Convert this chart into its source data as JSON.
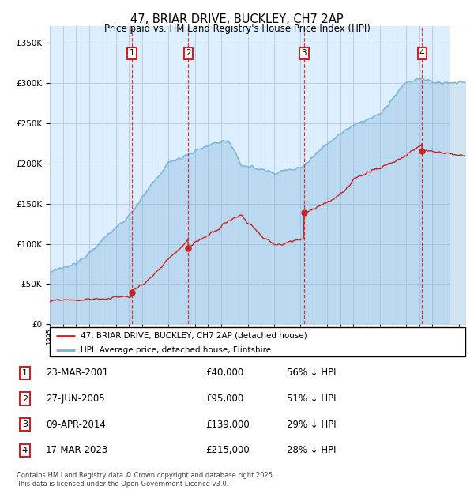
{
  "title": "47, BRIAR DRIVE, BUCKLEY, CH7 2AP",
  "subtitle": "Price paid vs. HM Land Registry's House Price Index (HPI)",
  "legend_property": "47, BRIAR DRIVE, BUCKLEY, CH7 2AP (detached house)",
  "legend_hpi": "HPI: Average price, detached house, Flintshire",
  "footer": "Contains HM Land Registry data © Crown copyright and database right 2025.\nThis data is licensed under the Open Government Licence v3.0.",
  "transactions": [
    {
      "num": 1,
      "date": "23-MAR-2001",
      "price": 40000,
      "pct": "56% ↓ HPI",
      "year": 2001.22
    },
    {
      "num": 2,
      "date": "27-JUN-2005",
      "price": 95000,
      "pct": "51% ↓ HPI",
      "year": 2005.49
    },
    {
      "num": 3,
      "date": "09-APR-2014",
      "price": 139000,
      "pct": "29% ↓ HPI",
      "year": 2014.27
    },
    {
      "num": 4,
      "date": "17-MAR-2023",
      "price": 215000,
      "pct": "28% ↓ HPI",
      "year": 2023.21
    }
  ],
  "xlim": [
    1995,
    2026.5
  ],
  "ylim": [
    0,
    370000
  ],
  "yticks": [
    0,
    50000,
    100000,
    150000,
    200000,
    250000,
    300000,
    350000
  ],
  "ytick_labels": [
    "£0",
    "£50K",
    "£100K",
    "£150K",
    "£200K",
    "£250K",
    "£300K",
    "£350K"
  ],
  "hpi_color": "#7ab4d8",
  "price_color": "#cc2222",
  "bg_color": "#ddeeff",
  "grid_color": "#bbccdd",
  "hatch_start": 2025.3
}
